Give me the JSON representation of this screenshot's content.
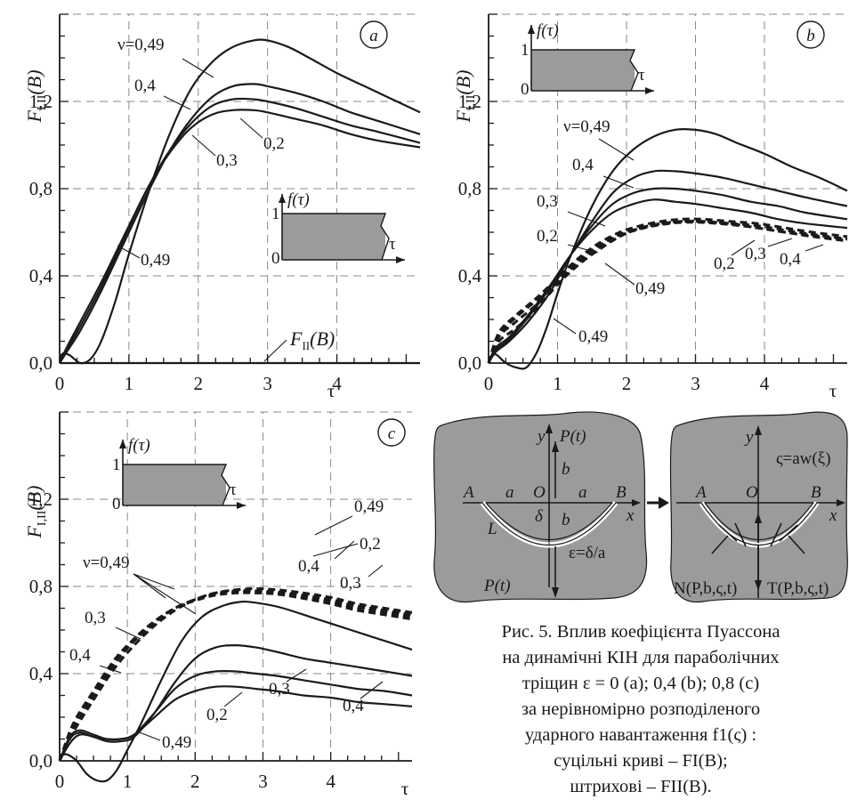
{
  "chart_data": [
    {
      "type": "line",
      "panel_label": "a",
      "ylabel": "F_{I,II}(B)",
      "xlabel": "τ",
      "x_ticks": [
        "0",
        "1",
        "2",
        "3",
        "4"
      ],
      "y_ticks": [
        "0,0",
        "0,4",
        "0,8",
        "1,2"
      ],
      "xlim": [
        0,
        5.2
      ],
      "ylim": [
        0,
        1.6
      ],
      "grid": true,
      "series": [
        {
          "name": "ν=0,49",
          "style": "solid",
          "x": [
            0,
            0.05,
            0.15,
            0.3,
            0.45,
            0.6,
            0.8,
            1,
            1.3,
            1.6,
            1.9,
            2.2,
            2.5,
            2.8,
            3,
            3.3,
            3.6,
            4,
            4.4,
            4.8,
            5.2
          ],
          "y": [
            0.02,
            0.045,
            0.035,
            0.0,
            0.02,
            0.1,
            0.28,
            0.5,
            0.8,
            1.06,
            1.26,
            1.38,
            1.45,
            1.48,
            1.48,
            1.45,
            1.4,
            1.33,
            1.27,
            1.21,
            1.15
          ]
        },
        {
          "name": "0,4",
          "style": "solid",
          "x": [
            0,
            0.1,
            0.3,
            0.6,
            1,
            1.3,
            1.6,
            1.9,
            2.2,
            2.5,
            2.8,
            3,
            3.4,
            3.8,
            4.2,
            4.6,
            5.2
          ],
          "y": [
            0.0,
            0.05,
            0.15,
            0.33,
            0.6,
            0.8,
            0.98,
            1.12,
            1.22,
            1.27,
            1.28,
            1.27,
            1.24,
            1.2,
            1.15,
            1.11,
            1.05
          ]
        },
        {
          "name": "0,3",
          "style": "solid",
          "x": [
            0,
            0.1,
            0.3,
            0.6,
            1,
            1.3,
            1.6,
            1.9,
            2.2,
            2.5,
            2.8,
            3,
            3.4,
            3.8,
            4.2,
            4.6,
            5.2
          ],
          "y": [
            0.0,
            0.06,
            0.17,
            0.35,
            0.62,
            0.82,
            0.98,
            1.1,
            1.18,
            1.21,
            1.21,
            1.2,
            1.17,
            1.13,
            1.09,
            1.06,
            1.01
          ]
        },
        {
          "name": "0,2",
          "style": "solid",
          "x": [
            0,
            0.1,
            0.3,
            0.6,
            1,
            1.3,
            1.6,
            1.9,
            2.2,
            2.5,
            2.8,
            3,
            3.4,
            3.8,
            4.2,
            4.6,
            5.2
          ],
          "y": [
            0.0,
            0.07,
            0.19,
            0.37,
            0.63,
            0.82,
            0.97,
            1.08,
            1.14,
            1.16,
            1.16,
            1.15,
            1.12,
            1.09,
            1.05,
            1.02,
            0.99
          ]
        },
        {
          "name": "F_II(B)",
          "style": "solid",
          "x": [
            0,
            5.2
          ],
          "y": [
            0,
            0
          ]
        }
      ],
      "annotations": [
        "ν=0,49",
        "0,4",
        "0,3",
        "0,2",
        "0,49",
        "F_II(B)"
      ],
      "inset": {
        "ylabel": "f(τ)",
        "xlabel": "τ",
        "y_ticks": [
          "0",
          "1"
        ],
        "fill_color": "#9b9b9b"
      }
    },
    {
      "type": "line",
      "panel_label": "b",
      "ylabel": "F_{I,II}(B)",
      "xlabel": "τ",
      "x_ticks": [
        "0",
        "1",
        "2",
        "3",
        "4"
      ],
      "y_ticks": [
        "0,0",
        "0,4",
        "0,8",
        "1,2"
      ],
      "xlim": [
        0,
        5.2
      ],
      "ylim": [
        0,
        1.6
      ],
      "grid": true,
      "series": [
        {
          "name": "ν=0,49",
          "style": "solid",
          "x": [
            0,
            0.1,
            0.25,
            0.4,
            0.55,
            0.7,
            0.85,
            1,
            1.2,
            1.5,
            1.8,
            2.1,
            2.4,
            2.7,
            3,
            3.3,
            3.6,
            4,
            4.4,
            4.8,
            5.2
          ],
          "y": [
            0.02,
            0.04,
            0.0,
            -0.02,
            -0.02,
            0.05,
            0.17,
            0.32,
            0.5,
            0.72,
            0.88,
            0.98,
            1.04,
            1.07,
            1.07,
            1.05,
            1.01,
            0.96,
            0.9,
            0.85,
            0.79
          ]
        },
        {
          "name": "0,4",
          "style": "solid",
          "x": [
            0,
            0.1,
            0.3,
            0.6,
            0.9,
            1.2,
            1.5,
            1.8,
            2.1,
            2.4,
            2.7,
            3,
            3.4,
            3.8,
            4.2,
            4.6,
            5.2
          ],
          "y": [
            0.0,
            0.05,
            0.1,
            0.2,
            0.33,
            0.5,
            0.65,
            0.78,
            0.85,
            0.88,
            0.88,
            0.87,
            0.85,
            0.82,
            0.79,
            0.76,
            0.72
          ]
        },
        {
          "name": "0,3",
          "style": "solid",
          "x": [
            0,
            0.1,
            0.3,
            0.6,
            0.9,
            1.2,
            1.5,
            1.8,
            2.1,
            2.4,
            2.7,
            3,
            3.4,
            3.8,
            4.2,
            4.6,
            5.2
          ],
          "y": [
            0.0,
            0.06,
            0.11,
            0.22,
            0.35,
            0.5,
            0.63,
            0.73,
            0.78,
            0.8,
            0.8,
            0.79,
            0.77,
            0.74,
            0.72,
            0.69,
            0.66
          ]
        },
        {
          "name": "0,2",
          "style": "solid",
          "x": [
            0,
            0.1,
            0.3,
            0.6,
            0.9,
            1.2,
            1.5,
            1.8,
            2.1,
            2.4,
            2.7,
            3,
            3.4,
            3.8,
            4.2,
            4.6,
            5.2
          ],
          "y": [
            0.0,
            0.07,
            0.12,
            0.23,
            0.36,
            0.5,
            0.61,
            0.69,
            0.73,
            0.75,
            0.74,
            0.73,
            0.71,
            0.69,
            0.66,
            0.64,
            0.62
          ]
        },
        {
          "name": "0,49",
          "style": "dashed",
          "x": [
            0,
            0.15,
            0.4,
            0.7,
            1,
            1.3,
            1.6,
            1.9,
            2.2,
            2.5,
            2.8,
            3.1,
            3.5,
            3.9,
            4.3,
            4.7,
            5.2
          ],
          "y": [
            0.0,
            0.1,
            0.16,
            0.25,
            0.36,
            0.45,
            0.52,
            0.58,
            0.62,
            0.64,
            0.65,
            0.65,
            0.64,
            0.62,
            0.6,
            0.58,
            0.56
          ]
        },
        {
          "name": "0,2",
          "style": "dashed",
          "x": [
            0,
            0.15,
            0.4,
            0.7,
            1,
            1.3,
            1.6,
            1.9,
            2.2,
            2.5,
            2.8,
            3.1,
            3.5,
            3.9,
            4.3,
            4.7,
            5.2
          ],
          "y": [
            0.0,
            0.14,
            0.22,
            0.3,
            0.39,
            0.48,
            0.55,
            0.6,
            0.63,
            0.65,
            0.66,
            0.66,
            0.65,
            0.64,
            0.62,
            0.6,
            0.58
          ]
        },
        {
          "name": "0,3",
          "style": "dashed",
          "x": [
            0,
            0.15,
            0.4,
            0.7,
            1,
            1.3,
            1.6,
            1.9,
            2.2,
            2.5,
            2.8,
            3.1,
            3.5,
            3.9,
            4.3,
            4.7,
            5.2
          ],
          "y": [
            0.0,
            0.13,
            0.21,
            0.29,
            0.38,
            0.47,
            0.54,
            0.59,
            0.62,
            0.64,
            0.65,
            0.65,
            0.64,
            0.63,
            0.61,
            0.59,
            0.57
          ]
        },
        {
          "name": "0,4",
          "style": "dashed",
          "x": [
            0,
            0.15,
            0.4,
            0.7,
            1,
            1.3,
            1.6,
            1.9,
            2.2,
            2.5,
            2.8,
            3.1,
            3.5,
            3.9,
            4.3,
            4.7,
            5.2
          ],
          "y": [
            0.0,
            0.12,
            0.19,
            0.27,
            0.37,
            0.46,
            0.53,
            0.585,
            0.615,
            0.635,
            0.645,
            0.645,
            0.635,
            0.62,
            0.6,
            0.585,
            0.565
          ]
        }
      ],
      "annotations": [
        "ν=0,49",
        "0,4",
        "0,3",
        "0,2",
        "0,49",
        "0,49",
        "0,2",
        "0,3",
        "0,4"
      ],
      "inset": {
        "ylabel": "f(τ)",
        "xlabel": "τ",
        "y_ticks": [
          "0",
          "1"
        ],
        "fill_color": "#9b9b9b"
      }
    },
    {
      "type": "line",
      "panel_label": "c",
      "ylabel": "F_{I,II}(B)",
      "xlabel": "τ",
      "x_ticks": [
        "0",
        "1",
        "2",
        "3",
        "4"
      ],
      "y_ticks": [
        "0,0",
        "0,4",
        "0,8",
        "1,2"
      ],
      "xlim": [
        0,
        5.2
      ],
      "ylim": [
        0,
        1.6
      ],
      "grid": true,
      "series": [
        {
          "name": "ν=0,49",
          "style": "solid",
          "x": [
            0,
            0.1,
            0.25,
            0.4,
            0.55,
            0.7,
            0.85,
            1,
            1.2,
            1.5,
            1.8,
            2.1,
            2.4,
            2.7,
            3,
            3.3,
            3.7,
            4.1,
            4.5,
            4.9,
            5.2
          ],
          "y": [
            0.02,
            0.03,
            0.0,
            -0.06,
            -0.09,
            -0.09,
            -0.04,
            0.05,
            0.17,
            0.37,
            0.55,
            0.66,
            0.71,
            0.73,
            0.72,
            0.7,
            0.66,
            0.62,
            0.58,
            0.54,
            0.51
          ]
        },
        {
          "name": "0,4",
          "style": "solid",
          "x": [
            0,
            0.15,
            0.3,
            0.5,
            0.7,
            0.9,
            1.1,
            1.4,
            1.7,
            2,
            2.3,
            2.6,
            2.9,
            3.2,
            3.6,
            4,
            4.4,
            4.8,
            5.2
          ],
          "y": [
            0.0,
            0.08,
            0.12,
            0.11,
            0.09,
            0.09,
            0.11,
            0.22,
            0.36,
            0.47,
            0.52,
            0.53,
            0.52,
            0.5,
            0.47,
            0.45,
            0.43,
            0.41,
            0.39
          ]
        },
        {
          "name": "0,3",
          "style": "solid",
          "x": [
            0,
            0.15,
            0.3,
            0.5,
            0.7,
            0.9,
            1.1,
            1.4,
            1.7,
            2,
            2.3,
            2.6,
            2.9,
            3.2,
            3.6,
            4,
            4.4,
            4.8,
            5.2
          ],
          "y": [
            0.0,
            0.1,
            0.13,
            0.11,
            0.1,
            0.1,
            0.12,
            0.22,
            0.33,
            0.39,
            0.41,
            0.41,
            0.4,
            0.39,
            0.37,
            0.35,
            0.33,
            0.32,
            0.3
          ]
        },
        {
          "name": "0,2",
          "style": "solid",
          "x": [
            0,
            0.15,
            0.3,
            0.5,
            0.7,
            0.9,
            1.1,
            1.4,
            1.7,
            2,
            2.3,
            2.6,
            2.9,
            3.2,
            3.6,
            4,
            4.4,
            4.8,
            5.2
          ],
          "y": [
            0.0,
            0.11,
            0.14,
            0.12,
            0.1,
            0.1,
            0.12,
            0.2,
            0.28,
            0.32,
            0.34,
            0.34,
            0.33,
            0.32,
            0.3,
            0.29,
            0.27,
            0.26,
            0.25
          ]
        },
        {
          "name": "0,49",
          "style": "dashed",
          "x": [
            0,
            0.2,
            0.5,
            0.8,
            1.1,
            1.4,
            1.7,
            2,
            2.3,
            2.6,
            2.9,
            3.2,
            3.6,
            4,
            4.4,
            4.8,
            5.2
          ],
          "y": [
            0.0,
            0.13,
            0.28,
            0.42,
            0.53,
            0.62,
            0.69,
            0.74,
            0.77,
            0.785,
            0.79,
            0.785,
            0.77,
            0.75,
            0.72,
            0.7,
            0.68
          ]
        },
        {
          "name": "0,4",
          "style": "dashed",
          "x": [
            0,
            0.2,
            0.5,
            0.8,
            1.1,
            1.4,
            1.7,
            2,
            2.3,
            2.6,
            2.9,
            3.2,
            3.6,
            4,
            4.4,
            4.8,
            5.2
          ],
          "y": [
            0.0,
            0.15,
            0.3,
            0.44,
            0.55,
            0.63,
            0.7,
            0.74,
            0.77,
            0.78,
            0.78,
            0.775,
            0.76,
            0.74,
            0.71,
            0.69,
            0.67
          ]
        },
        {
          "name": "0,3",
          "style": "dashed",
          "x": [
            0,
            0.2,
            0.5,
            0.8,
            1.1,
            1.4,
            1.7,
            2,
            2.3,
            2.6,
            2.9,
            3.2,
            3.6,
            4,
            4.4,
            4.8,
            5.2
          ],
          "y": [
            0.0,
            0.16,
            0.31,
            0.45,
            0.56,
            0.64,
            0.7,
            0.74,
            0.765,
            0.775,
            0.775,
            0.77,
            0.75,
            0.73,
            0.7,
            0.68,
            0.66
          ]
        },
        {
          "name": "0,2",
          "style": "dashed",
          "x": [
            0,
            0.2,
            0.5,
            0.8,
            1.1,
            1.4,
            1.7,
            2,
            2.3,
            2.6,
            2.9,
            3.2,
            3.6,
            4,
            4.4,
            4.8,
            5.2
          ],
          "y": [
            0.0,
            0.17,
            0.32,
            0.46,
            0.56,
            0.64,
            0.7,
            0.735,
            0.76,
            0.77,
            0.77,
            0.765,
            0.745,
            0.72,
            0.69,
            0.67,
            0.65
          ]
        }
      ],
      "annotations": [
        "ν=0,49",
        "0,3",
        "0,4",
        "0,49",
        "0,2",
        "0,4",
        "0,3",
        "0,2",
        "0,3",
        "0,4",
        "0,49"
      ],
      "inset": {
        "ylabel": "f(τ)",
        "xlabel": "τ",
        "y_ticks": [
          "0",
          "1"
        ],
        "fill_color": "#9b9b9b"
      }
    }
  ],
  "diagram": {
    "fill_color": "#9b9b9b",
    "left": {
      "labels": [
        "y",
        "P(t)",
        "b",
        "A",
        "a",
        "O",
        "a",
        "B",
        "x",
        "δ",
        "b",
        "L",
        "ε=δ/a",
        "P(t)"
      ]
    },
    "right": {
      "labels": [
        "y",
        "ς=aw(ξ)",
        "A",
        "O",
        "B",
        "x",
        "N(P,b,ς,t)",
        "T(P,b,ς,t)"
      ]
    }
  },
  "caption": {
    "lines": [
      "Рис. 5. Вплив коефіцієнта Пуассона",
      "на динамічні КІН для параболічних",
      "тріщин ε = 0 (a); 0,4 (b); 0,8 (c)",
      "за нерівномірно розподіленого",
      "ударного навантаження  f1(ς) :",
      "суцільні криві – FI(B);",
      "штрихові – FII(B)."
    ]
  }
}
